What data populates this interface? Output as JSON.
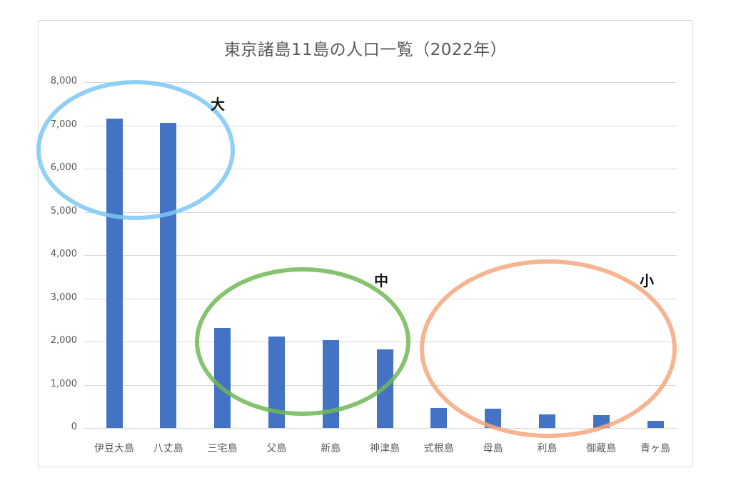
{
  "chart_data": {
    "type": "bar",
    "title": "東京諸島11島の人口一覧（2022年）",
    "xlabel": "",
    "ylabel": "",
    "ylim": [
      0,
      8000
    ],
    "yticks": [
      "0",
      "1,000",
      "2,000",
      "3,000",
      "4,000",
      "5,000",
      "6,000",
      "7,000",
      "8,000"
    ],
    "grid": true,
    "legend": "none",
    "categories": [
      "伊豆大島",
      "八丈島",
      "三宅島",
      "父島",
      "新島",
      "神津島",
      "式根島",
      "母島",
      "利島",
      "御蔵島",
      "青ヶ島"
    ],
    "values": [
      7160,
      7060,
      2310,
      2110,
      2030,
      1810,
      470,
      450,
      320,
      290,
      160
    ],
    "bar_color": "#4472c4",
    "annotations": [
      {
        "label": "大",
        "group": [
          "伊豆大島",
          "八丈島"
        ],
        "color": "#7cc8f4"
      },
      {
        "label": "中",
        "group": [
          "三宅島",
          "父島",
          "新島",
          "神津島"
        ],
        "color": "#70b855"
      },
      {
        "label": "小",
        "group": [
          "式根島",
          "母島",
          "利島",
          "御蔵島",
          "青ヶ島"
        ],
        "color": "#f4a77c"
      }
    ]
  }
}
